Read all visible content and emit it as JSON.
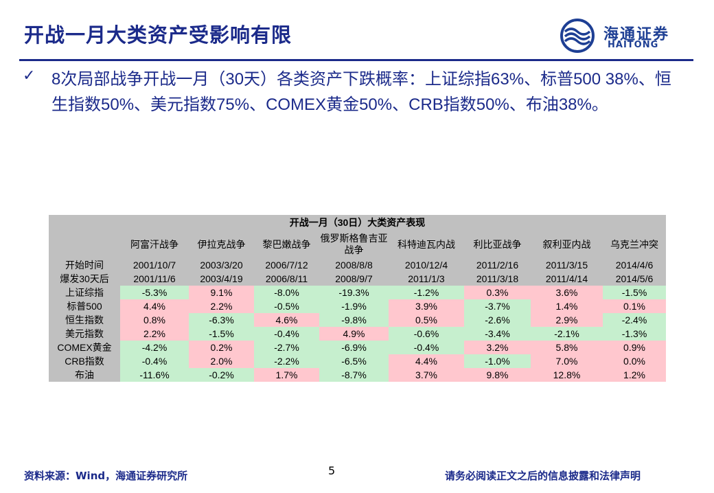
{
  "title": "开战一月大类资产受影响有限",
  "logo": {
    "cn": "海通证券",
    "en": "HAITONG"
  },
  "bullet": {
    "mark": "✓",
    "text": "8次局部战争开战一月（30天）各类资产下跌概率：上证综指63%、标普500 38%、恒生指数50%、美元指数75%、COMEX黄金50%、CRB指数50%、布油38%。"
  },
  "table": {
    "caption": "开战一月（30日）大类资产表现",
    "wars": [
      "阿富汗战争",
      "伊拉克战争",
      "黎巴嫩战争",
      "俄罗斯格鲁吉亚战争",
      "科特迪瓦内战",
      "利比亚战争",
      "叙利亚内战",
      "乌克兰冲突"
    ],
    "start_label": "开始时间",
    "start_dates": [
      "2001/10/7",
      "2003/3/20",
      "2006/7/12",
      "2008/8/8",
      "2010/12/4",
      "2011/2/16",
      "2011/3/15",
      "2014/4/6"
    ],
    "after_label": "爆发30天后",
    "after_dates": [
      "2001/11/6",
      "2003/4/19",
      "2006/8/11",
      "2008/9/7",
      "2011/1/3",
      "2011/3/18",
      "2011/4/14",
      "2014/5/6"
    ],
    "rows": [
      {
        "label": "上证综指",
        "values": [
          "-5.3%",
          "9.1%",
          "-8.0%",
          "-19.3%",
          "-1.2%",
          "0.3%",
          "3.6%",
          "-1.5%"
        ]
      },
      {
        "label": "标普500",
        "values": [
          "4.4%",
          "2.2%",
          "-0.5%",
          "-1.9%",
          "3.9%",
          "-3.7%",
          "1.4%",
          "0.1%"
        ]
      },
      {
        "label": "恒生指数",
        "values": [
          "0.8%",
          "-6.3%",
          "4.6%",
          "-9.8%",
          "0.5%",
          "-2.6%",
          "2.9%",
          "-2.4%"
        ]
      },
      {
        "label": "美元指数",
        "values": [
          "2.2%",
          "-1.5%",
          "-0.4%",
          "4.9%",
          "-0.6%",
          "-3.4%",
          "-2.1%",
          "-1.3%"
        ]
      },
      {
        "label": "COMEX黄金",
        "values": [
          "-4.2%",
          "0.2%",
          "-2.7%",
          "-6.9%",
          "-0.4%",
          "3.2%",
          "5.8%",
          "0.9%"
        ]
      },
      {
        "label": "CRB指数",
        "values": [
          "-0.4%",
          "2.0%",
          "-2.2%",
          "-6.5%",
          "4.4%",
          "-1.0%",
          "7.0%",
          "0.0%"
        ]
      },
      {
        "label": "布油",
        "values": [
          "-11.6%",
          "-0.2%",
          "1.7%",
          "-8.7%",
          "3.7%",
          "9.8%",
          "12.8%",
          "1.2%"
        ]
      }
    ],
    "colors": {
      "negative": "#c6efce",
      "positive": "#ffc7ce",
      "header": "#c0c0c0"
    }
  },
  "footer": {
    "source": "资料来源：Wind，海通证券研究所",
    "page": "5",
    "disclaimer": "请务必阅读正文之后的信息披露和法律声明"
  },
  "colors": {
    "accent": "#1b2a8a"
  }
}
